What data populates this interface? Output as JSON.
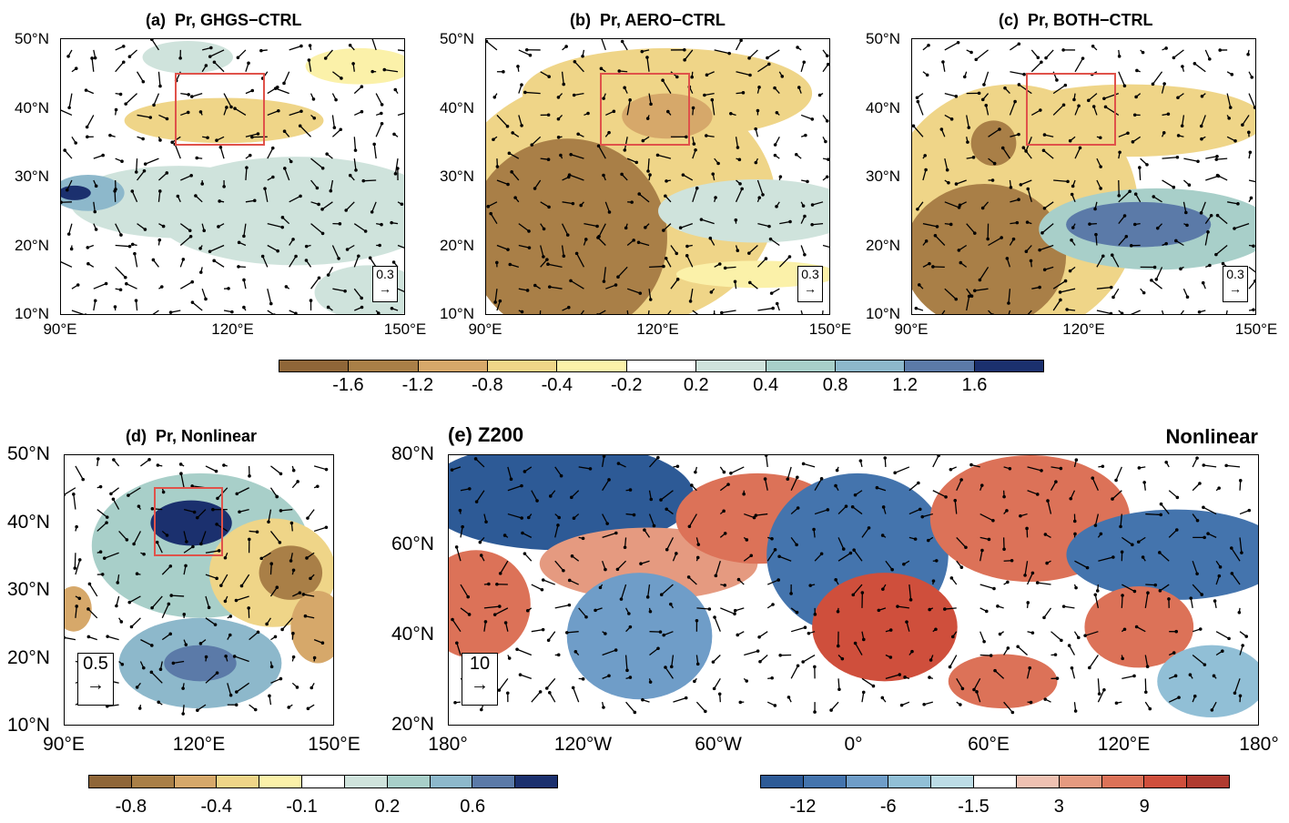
{
  "panels": {
    "a": {
      "title": "(a)  Pr, GHGS−CTRL",
      "ref": "0.3"
    },
    "b": {
      "title": "(b)  Pr, AERO−CTRL",
      "ref": "0.3"
    },
    "c": {
      "title": "(c)  Pr, BOTH−CTRL",
      "ref": "0.3"
    },
    "d": {
      "title": "(d)  Pr, Nonlinear",
      "ref": "0.5"
    },
    "e": {
      "title": "(e) Z200",
      "subtitle": "Nonlinear",
      "ref": "10"
    }
  },
  "axes_pr": {
    "lat": [
      "50°N",
      "40°N",
      "30°N",
      "20°N",
      "10°N"
    ],
    "lon": [
      "90°E",
      "120°E",
      "150°E"
    ]
  },
  "axes_z": {
    "lat": [
      "80°N",
      "60°N",
      "40°N",
      "20°N"
    ],
    "lon": [
      "180°",
      "120°W",
      "60°W",
      "0°",
      "60°E",
      "120°E",
      "180°"
    ]
  },
  "colorbar_top": {
    "colors": [
      "#8f6638",
      "#a97f47",
      "#d6a86a",
      "#efd588",
      "#fbf1a9",
      "#ffffff",
      "#cfe3dc",
      "#a8cfc9",
      "#8db8cb",
      "#5b7aa8",
      "#1b306e"
    ],
    "labels": [
      "-1.6",
      "-1.2",
      "-0.8",
      "-0.4",
      "-0.2",
      "0.2",
      "0.4",
      "0.8",
      "1.2",
      "1.6"
    ]
  },
  "colorbar_d": {
    "colors": [
      "#8f6638",
      "#a97f47",
      "#d6a86a",
      "#efd588",
      "#fbf1a9",
      "#ffffff",
      "#cfe3dc",
      "#a8cfc9",
      "#8db8cb",
      "#5b7aa8",
      "#1b306e"
    ],
    "labels": [
      "-0.8",
      "-0.4",
      "-0.1",
      "0.2",
      "0.6"
    ]
  },
  "colorbar_e": {
    "colors": [
      "#2d5a96",
      "#4474ad",
      "#6f9dc8",
      "#91bfd6",
      "#bcdce6",
      "#ffffff",
      "#efc1b2",
      "#e59a80",
      "#dc7258",
      "#cf4f3c",
      "#b03b30"
    ],
    "labels": [
      "-12",
      "-6",
      "-1.5",
      "3",
      "9"
    ]
  }
}
